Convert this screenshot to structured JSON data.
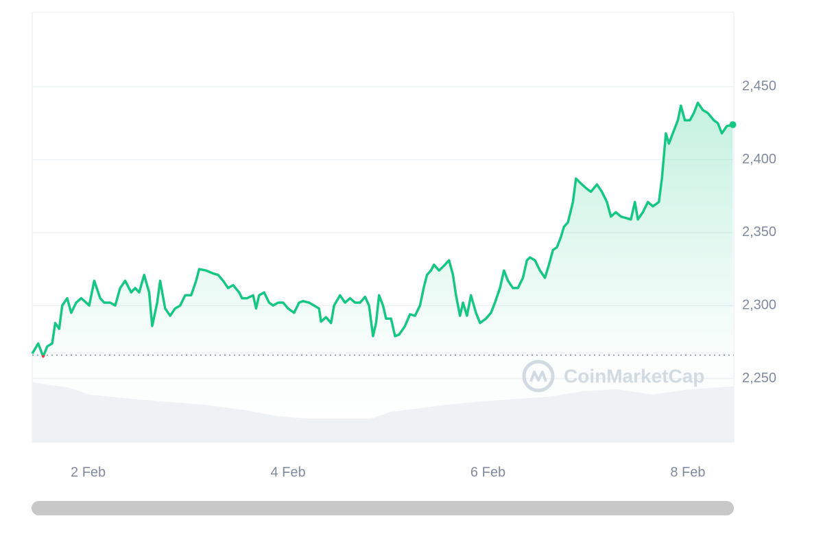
{
  "chart_data": {
    "type": "line",
    "watermark": "CoinMarketCap",
    "x": [
      1.44,
      1.5,
      1.55,
      1.59,
      1.64,
      1.67,
      1.71,
      1.74,
      1.79,
      1.83,
      1.88,
      1.93,
      1.98,
      2.01,
      2.06,
      2.12,
      2.16,
      2.22,
      2.27,
      2.32,
      2.37,
      2.43,
      2.47,
      2.51,
      2.56,
      2.61,
      2.64,
      2.69,
      2.72,
      2.77,
      2.82,
      2.87,
      2.92,
      2.97,
      3.03,
      3.08,
      3.11,
      3.18,
      3.25,
      3.3,
      3.35,
      3.4,
      3.45,
      3.51,
      3.54,
      3.59,
      3.65,
      3.68,
      3.71,
      3.76,
      3.81,
      3.85,
      3.9,
      3.95,
      4.0,
      4.06,
      4.11,
      4.15,
      4.21,
      4.26,
      4.31,
      4.33,
      4.38,
      4.43,
      4.46,
      4.52,
      4.57,
      4.62,
      4.67,
      4.72,
      4.77,
      4.81,
      4.85,
      4.88,
      4.91,
      4.95,
      4.98,
      5.03,
      5.07,
      5.11,
      5.17,
      5.22,
      5.27,
      5.32,
      5.36,
      5.39,
      5.43,
      5.46,
      5.51,
      5.57,
      5.61,
      5.65,
      5.68,
      5.72,
      5.75,
      5.79,
      5.83,
      5.88,
      5.92,
      5.98,
      6.03,
      6.07,
      6.12,
      6.16,
      6.2,
      6.25,
      6.3,
      6.35,
      6.39,
      6.42,
      6.47,
      6.52,
      6.57,
      6.61,
      6.65,
      6.69,
      6.73,
      6.76,
      6.8,
      6.85,
      6.88,
      6.94,
      6.99,
      7.03,
      7.09,
      7.14,
      7.19,
      7.23,
      7.28,
      7.33,
      7.38,
      7.43,
      7.47,
      7.5,
      7.55,
      7.6,
      7.65,
      7.71,
      7.74,
      7.78,
      7.81,
      7.86,
      7.9,
      7.93,
      7.97,
      8.02,
      8.06,
      8.1,
      8.15,
      8.2,
      8.26,
      8.3,
      8.34,
      8.39,
      8.45
    ],
    "series": [
      {
        "color": "#16c784",
        "below_color": "#ea3943",
        "values": [
          2267,
          2274,
          2265,
          2272,
          2274,
          2288,
          2284,
          2300,
          2305,
          2295,
          2302,
          2305,
          2302,
          2300,
          2317,
          2305,
          2302,
          2302,
          2300,
          2312,
          2317,
          2309,
          2312,
          2309,
          2321,
          2309,
          2286,
          2302,
          2317,
          2298,
          2293,
          2298,
          2300,
          2307,
          2307,
          2317,
          2325,
          2324,
          2322,
          2321,
          2317,
          2312,
          2314,
          2309,
          2305,
          2305,
          2307,
          2298,
          2307,
          2309,
          2302,
          2300,
          2302,
          2302,
          2298,
          2295,
          2302,
          2303,
          2302,
          2300,
          2298,
          2289,
          2292,
          2288,
          2300,
          2307,
          2302,
          2305,
          2302,
          2302,
          2306,
          2300,
          2279,
          2288,
          2307,
          2300,
          2291,
          2291,
          2279,
          2280,
          2286,
          2294,
          2293,
          2300,
          2313,
          2321,
          2324,
          2328,
          2324,
          2328,
          2331,
          2321,
          2307,
          2293,
          2302,
          2293,
          2307,
          2295,
          2288,
          2291,
          2295,
          2302,
          2312,
          2324,
          2317,
          2312,
          2312,
          2319,
          2331,
          2333,
          2331,
          2324,
          2319,
          2328,
          2338,
          2340,
          2347,
          2354,
          2357,
          2371,
          2387,
          2383,
          2380,
          2378,
          2383,
          2378,
          2371,
          2361,
          2364,
          2361,
          2360,
          2359,
          2371,
          2359,
          2364,
          2371,
          2368,
          2371,
          2387,
          2418,
          2411,
          2420,
          2427,
          2437,
          2427,
          2427,
          2432,
          2439,
          2434,
          2432,
          2427,
          2425,
          2418,
          2423,
          2424
        ]
      }
    ],
    "baseline": 2266,
    "volume": {
      "color": "#eff2f5",
      "ylim": [
        0,
        100
      ],
      "x": [
        1.44,
        1.81,
        2.01,
        2.49,
        3.18,
        3.59,
        3.87,
        4.21,
        4.83,
        5.03,
        5.58,
        5.92,
        6.61,
        6.95,
        7.29,
        7.64,
        7.98,
        8.46
      ],
      "values": [
        88,
        80,
        70,
        63,
        55,
        47,
        39,
        35,
        35,
        45,
        55,
        60,
        67,
        75,
        78,
        70,
        77,
        82
      ]
    },
    "xlim": [
      1.44,
      8.46
    ],
    "xticks": [
      {
        "value": 2,
        "label": "2 Feb"
      },
      {
        "value": 4,
        "label": "4 Feb"
      },
      {
        "value": 6,
        "label": "6 Feb"
      },
      {
        "value": 8,
        "label": "8 Feb"
      }
    ],
    "ylim": [
      2206,
      2501
    ],
    "yticks": [
      {
        "value": 2250,
        "label": "2,250"
      },
      {
        "value": 2300,
        "label": "2,300"
      },
      {
        "value": 2350,
        "label": "2,350"
      },
      {
        "value": 2400,
        "label": "2,400"
      },
      {
        "value": 2450,
        "label": "2,450"
      }
    ],
    "grid": true
  }
}
